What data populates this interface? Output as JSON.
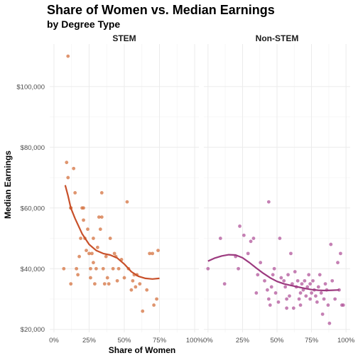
{
  "chart_data": {
    "type": "scatter",
    "title": "Share of Women vs. Median Earnings",
    "subtitle": "by Degree Type",
    "xlabel": "Share of Women",
    "ylabel": "Median Earnings",
    "xlim": [
      -0.03,
      1.03
    ],
    "ylim": [
      19000,
      114000
    ],
    "x_ticks": [
      0,
      0.25,
      0.5,
      0.75,
      1.0
    ],
    "x_tick_labels": [
      "0%",
      "25%",
      "50%",
      "75%",
      "100%"
    ],
    "y_ticks": [
      20000,
      40000,
      60000,
      80000,
      100000
    ],
    "y_tick_labels": [
      "$20,000",
      "$40,000",
      "$60,000",
      "$80,000",
      "$100,000"
    ],
    "grid": true,
    "panels": [
      {
        "name": "STEM",
        "color": "#d4713f",
        "smooth_color": "#c8502a",
        "points": [
          [
            0.07,
            40000
          ],
          [
            0.1,
            110000
          ],
          [
            0.09,
            75000
          ],
          [
            0.1,
            70000
          ],
          [
            0.12,
            60000
          ],
          [
            0.14,
            73000
          ],
          [
            0.15,
            65000
          ],
          [
            0.12,
            60000
          ],
          [
            0.12,
            35000
          ],
          [
            0.16,
            40000
          ],
          [
            0.17,
            38000
          ],
          [
            0.18,
            44000
          ],
          [
            0.19,
            50000
          ],
          [
            0.2,
            60000
          ],
          [
            0.21,
            56000
          ],
          [
            0.22,
            50000
          ],
          [
            0.23,
            46000
          ],
          [
            0.24,
            53000
          ],
          [
            0.25,
            45000
          ],
          [
            0.26,
            40000
          ],
          [
            0.26,
            37000
          ],
          [
            0.27,
            45000
          ],
          [
            0.28,
            50000
          ],
          [
            0.29,
            35000
          ],
          [
            0.3,
            40000
          ],
          [
            0.31,
            47000
          ],
          [
            0.32,
            57000
          ],
          [
            0.33,
            53000
          ],
          [
            0.34,
            65000
          ],
          [
            0.34,
            57000
          ],
          [
            0.35,
            40000
          ],
          [
            0.36,
            35000
          ],
          [
            0.37,
            44000
          ],
          [
            0.38,
            37000
          ],
          [
            0.39,
            35000
          ],
          [
            0.4,
            50000
          ],
          [
            0.42,
            40000
          ],
          [
            0.43,
            45000
          ],
          [
            0.45,
            36000
          ],
          [
            0.46,
            40000
          ],
          [
            0.48,
            43000
          ],
          [
            0.5,
            37000
          ],
          [
            0.52,
            62000
          ],
          [
            0.53,
            40000
          ],
          [
            0.55,
            33000
          ],
          [
            0.56,
            36000
          ],
          [
            0.58,
            34000
          ],
          [
            0.59,
            38000
          ],
          [
            0.61,
            35000
          ],
          [
            0.63,
            26000
          ],
          [
            0.66,
            33000
          ],
          [
            0.68,
            45000
          ],
          [
            0.7,
            45000
          ],
          [
            0.71,
            28000
          ],
          [
            0.73,
            30000
          ],
          [
            0.74,
            46000
          ],
          [
            0.21,
            60000
          ],
          [
            0.28,
            42000
          ],
          [
            0.44,
            44000
          ],
          [
            0.57,
            38000
          ]
        ],
        "smooth": [
          [
            0.08,
            67500
          ],
          [
            0.1,
            64000
          ],
          [
            0.12,
            60000
          ],
          [
            0.15,
            56500
          ],
          [
            0.2,
            51500
          ],
          [
            0.25,
            48000
          ],
          [
            0.3,
            46000
          ],
          [
            0.35,
            45000
          ],
          [
            0.4,
            44500
          ],
          [
            0.45,
            43500
          ],
          [
            0.5,
            41500
          ],
          [
            0.55,
            39000
          ],
          [
            0.6,
            37500
          ],
          [
            0.65,
            36800
          ],
          [
            0.7,
            36600
          ],
          [
            0.75,
            36800
          ]
        ]
      },
      {
        "name": "Non-STEM",
        "color": "#b2559b",
        "smooth_color": "#9c3a7f",
        "points": [
          [
            0.0,
            40000
          ],
          [
            0.09,
            50000
          ],
          [
            0.12,
            35000
          ],
          [
            0.2,
            44000
          ],
          [
            0.22,
            40000
          ],
          [
            0.23,
            54000
          ],
          [
            0.26,
            51000
          ],
          [
            0.29,
            45000
          ],
          [
            0.31,
            49000
          ],
          [
            0.33,
            50000
          ],
          [
            0.35,
            32000
          ],
          [
            0.36,
            38000
          ],
          [
            0.38,
            42000
          ],
          [
            0.41,
            36000
          ],
          [
            0.43,
            33000
          ],
          [
            0.44,
            62000
          ],
          [
            0.44,
            30000
          ],
          [
            0.45,
            28000
          ],
          [
            0.46,
            34000
          ],
          [
            0.47,
            38000
          ],
          [
            0.48,
            40000
          ],
          [
            0.49,
            32000
          ],
          [
            0.51,
            29000
          ],
          [
            0.52,
            50000
          ],
          [
            0.53,
            37000
          ],
          [
            0.55,
            36000
          ],
          [
            0.56,
            34000
          ],
          [
            0.57,
            30000
          ],
          [
            0.58,
            38000
          ],
          [
            0.59,
            31000
          ],
          [
            0.6,
            45000
          ],
          [
            0.61,
            35000
          ],
          [
            0.62,
            27000
          ],
          [
            0.63,
            39000
          ],
          [
            0.64,
            34000
          ],
          [
            0.65,
            36000
          ],
          [
            0.66,
            30000
          ],
          [
            0.67,
            28000
          ],
          [
            0.68,
            35000
          ],
          [
            0.69,
            33000
          ],
          [
            0.7,
            36000
          ],
          [
            0.71,
            31000
          ],
          [
            0.72,
            34000
          ],
          [
            0.73,
            38000
          ],
          [
            0.74,
            30000
          ],
          [
            0.75,
            32000
          ],
          [
            0.76,
            36000
          ],
          [
            0.77,
            33000
          ],
          [
            0.78,
            31000
          ],
          [
            0.79,
            29000
          ],
          [
            0.8,
            34000
          ],
          [
            0.81,
            38000
          ],
          [
            0.82,
            32000
          ],
          [
            0.83,
            25000
          ],
          [
            0.84,
            30000
          ],
          [
            0.85,
            35000
          ],
          [
            0.86,
            33000
          ],
          [
            0.87,
            28000
          ],
          [
            0.88,
            22000
          ],
          [
            0.89,
            48000
          ],
          [
            0.9,
            36000
          ],
          [
            0.92,
            30000
          ],
          [
            0.94,
            42000
          ],
          [
            0.95,
            33000
          ],
          [
            0.96,
            45000
          ],
          [
            0.97,
            28000
          ],
          [
            0.98,
            28000
          ],
          [
            0.67,
            32000
          ],
          [
            0.74,
            35000
          ],
          [
            0.57,
            27000
          ]
        ],
        "smooth": [
          [
            0.0,
            42500
          ],
          [
            0.05,
            43500
          ],
          [
            0.1,
            44200
          ],
          [
            0.15,
            44600
          ],
          [
            0.2,
            44500
          ],
          [
            0.25,
            43600
          ],
          [
            0.3,
            42000
          ],
          [
            0.35,
            40200
          ],
          [
            0.4,
            38500
          ],
          [
            0.45,
            37000
          ],
          [
            0.5,
            35800
          ],
          [
            0.55,
            35000
          ],
          [
            0.6,
            34500
          ],
          [
            0.65,
            34000
          ],
          [
            0.7,
            33500
          ],
          [
            0.75,
            33100
          ],
          [
            0.8,
            32900
          ],
          [
            0.85,
            32800
          ],
          [
            0.9,
            32900
          ],
          [
            0.95,
            33000
          ]
        ]
      }
    ]
  }
}
